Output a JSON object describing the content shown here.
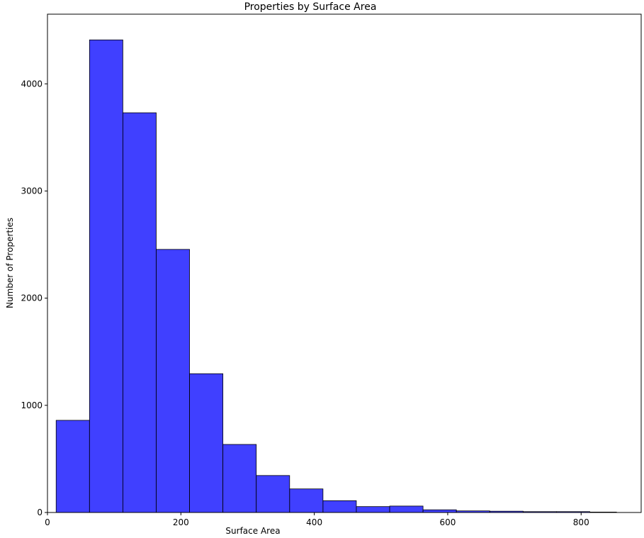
{
  "chart_data": {
    "type": "bar",
    "title": "Properties by Surface Area",
    "xlabel": "Surface Area",
    "ylabel": "Number of Properties",
    "xlim": [
      0,
      890
    ],
    "ylim": [
      0,
      4650
    ],
    "xticks": [
      0,
      200,
      400,
      600,
      800
    ],
    "yticks": [
      0,
      1000,
      2000,
      3000,
      4000
    ],
    "grid": false,
    "bar_color": "#0000ff",
    "bar_opacity": 0.75,
    "edge_color": "#000000",
    "bins": [
      {
        "x0": 13,
        "x1": 63,
        "count": 860
      },
      {
        "x0": 63,
        "x1": 113,
        "count": 4410
      },
      {
        "x0": 113,
        "x1": 163,
        "count": 3730
      },
      {
        "x0": 163,
        "x1": 213,
        "count": 2455
      },
      {
        "x0": 213,
        "x1": 263,
        "count": 1295
      },
      {
        "x0": 263,
        "x1": 313,
        "count": 635
      },
      {
        "x0": 313,
        "x1": 363,
        "count": 345
      },
      {
        "x0": 363,
        "x1": 413,
        "count": 220
      },
      {
        "x0": 413,
        "x1": 463,
        "count": 110
      },
      {
        "x0": 463,
        "x1": 513,
        "count": 55
      },
      {
        "x0": 513,
        "x1": 563,
        "count": 60
      },
      {
        "x0": 563,
        "x1": 613,
        "count": 25
      },
      {
        "x0": 613,
        "x1": 663,
        "count": 15
      },
      {
        "x0": 663,
        "x1": 713,
        "count": 12
      },
      {
        "x0": 713,
        "x1": 763,
        "count": 8
      },
      {
        "x0": 763,
        "x1": 813,
        "count": 8
      },
      {
        "x0": 813,
        "x1": 853,
        "count": 4
      }
    ]
  }
}
